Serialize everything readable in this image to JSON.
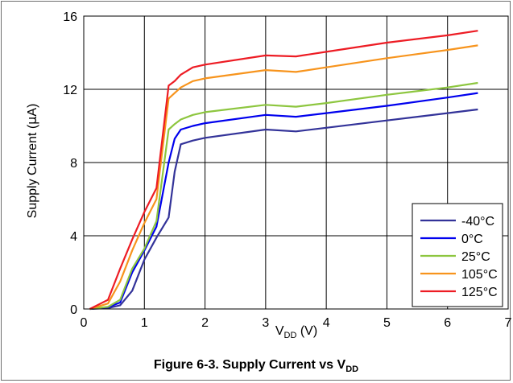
{
  "caption": {
    "prefix": "Figure 6-3. Supply Current vs V",
    "subscript": "DD"
  },
  "chart_data": {
    "type": "line",
    "xlabel": {
      "main": "V",
      "sub": "DD",
      "suffix": " (V)"
    },
    "ylabel": {
      "prefix": "Supply Current (",
      "mu": "µ",
      "suffix": "A)"
    },
    "xlim": [
      0,
      7
    ],
    "ylim": [
      0,
      16
    ],
    "xticks": [
      "0",
      "1",
      "2",
      "3",
      "4",
      "5",
      "6",
      "7"
    ],
    "yticks": [
      "0",
      "4",
      "8",
      "12",
      "16"
    ],
    "grid": true,
    "legend_position": "bottom-right",
    "series": [
      {
        "name": "-40°C",
        "color": "#333399",
        "x": [
          0.1,
          0.4,
          0.6,
          0.8,
          1.0,
          1.2,
          1.4,
          1.5,
          1.6,
          1.8,
          2.0,
          3.0,
          3.5,
          4.0,
          5.0,
          6.0,
          6.5
        ],
        "y": [
          0.0,
          0.05,
          0.2,
          1.0,
          2.7,
          3.9,
          5.0,
          7.5,
          9.0,
          9.2,
          9.35,
          9.8,
          9.7,
          9.9,
          10.3,
          10.7,
          10.9
        ]
      },
      {
        "name": "0°C",
        "color": "#0000ee",
        "x": [
          0.1,
          0.4,
          0.6,
          0.8,
          1.0,
          1.2,
          1.4,
          1.5,
          1.6,
          1.8,
          2.0,
          3.0,
          3.5,
          4.0,
          5.0,
          6.0,
          6.5
        ],
        "y": [
          0.0,
          0.1,
          0.35,
          2.0,
          3.2,
          4.5,
          8.0,
          9.3,
          9.8,
          10.0,
          10.15,
          10.6,
          10.5,
          10.7,
          11.1,
          11.55,
          11.8
        ]
      },
      {
        "name": "25°C",
        "color": "#8dc63f",
        "x": [
          0.1,
          0.4,
          0.6,
          0.8,
          1.0,
          1.2,
          1.4,
          1.5,
          1.6,
          1.8,
          2.0,
          3.0,
          3.5,
          4.0,
          5.0,
          6.0,
          6.5
        ],
        "y": [
          0.0,
          0.12,
          0.5,
          2.2,
          3.3,
          4.8,
          9.8,
          10.1,
          10.35,
          10.6,
          10.75,
          11.15,
          11.05,
          11.25,
          11.7,
          12.1,
          12.35
        ]
      },
      {
        "name": "105°C",
        "color": "#f7941d",
        "x": [
          0.1,
          0.4,
          0.6,
          0.8,
          1.0,
          1.2,
          1.4,
          1.6,
          1.8,
          2.0,
          3.0,
          3.5,
          4.0,
          5.0,
          6.0,
          6.5
        ],
        "y": [
          0.0,
          0.3,
          1.5,
          3.2,
          4.7,
          6.0,
          11.5,
          12.1,
          12.45,
          12.6,
          13.05,
          12.95,
          13.2,
          13.7,
          14.15,
          14.4
        ]
      },
      {
        "name": "125°C",
        "color": "#ed1c24",
        "x": [
          0.1,
          0.4,
          0.6,
          0.8,
          1.0,
          1.2,
          1.4,
          1.5,
          1.6,
          1.8,
          2.0,
          3.0,
          3.5,
          4.0,
          5.0,
          6.0,
          6.5
        ],
        "y": [
          0.0,
          0.5,
          2.2,
          3.8,
          5.3,
          6.6,
          12.2,
          12.45,
          12.8,
          13.2,
          13.35,
          13.85,
          13.8,
          14.05,
          14.55,
          14.95,
          15.2
        ]
      }
    ]
  }
}
